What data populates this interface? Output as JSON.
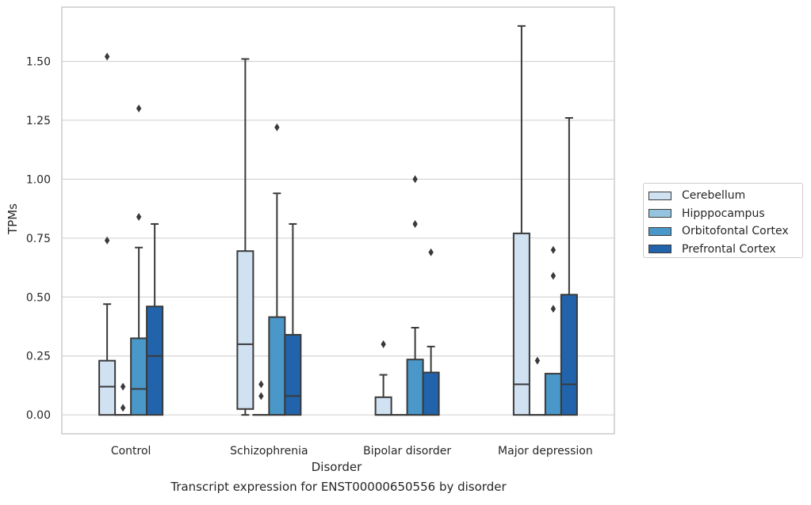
{
  "chart_data": {
    "type": "box",
    "xlabel": "Disorder",
    "ylabel": "TPMs",
    "ylim": [
      -0.08,
      1.73
    ],
    "yticks": [
      0.0,
      0.25,
      0.5,
      0.75,
      1.0,
      1.25,
      1.5
    ],
    "ytick_labels": [
      "0.00",
      "0.25",
      "0.50",
      "0.75",
      "1.00",
      "1.25",
      "1.50"
    ],
    "grid": "horizontal",
    "legend_position": "right",
    "categories": [
      "Control",
      "Schizophrenia",
      "Bipolar disorder",
      "Major depression"
    ],
    "series": [
      {
        "name": "Cerebellum",
        "color": "#d0e1f2",
        "boxes": [
          {
            "whislo": 0.0,
            "q1": 0.0,
            "med": 0.12,
            "q3": 0.23,
            "whishi": 0.47,
            "fliers": [
              0.74,
              1.52
            ]
          },
          {
            "whislo": 0.0,
            "q1": 0.025,
            "med": 0.3,
            "q3": 0.695,
            "whishi": 1.51,
            "fliers": []
          },
          {
            "whislo": 0.0,
            "q1": 0.0,
            "med": 0.0,
            "q3": 0.075,
            "whishi": 0.17,
            "fliers": [
              0.3
            ]
          },
          {
            "whislo": 0.0,
            "q1": 0.0,
            "med": 0.13,
            "q3": 0.77,
            "whishi": 1.65,
            "fliers": []
          }
        ]
      },
      {
        "name": "Hipppocampus",
        "color": "#94c4df",
        "boxes": [
          {
            "whislo": 0.0,
            "q1": 0.0,
            "med": 0.0,
            "q3": 0.0,
            "whishi": 0.0,
            "fliers": [
              0.03,
              0.12
            ]
          },
          {
            "whislo": 0.0,
            "q1": 0.0,
            "med": 0.0,
            "q3": 0.0,
            "whishi": 0.0,
            "fliers": [
              0.08,
              0.13
            ]
          },
          {
            "whislo": 0.0,
            "q1": 0.0,
            "med": 0.0,
            "q3": 0.0,
            "whishi": 0.0,
            "fliers": []
          },
          {
            "whislo": 0.0,
            "q1": 0.0,
            "med": 0.0,
            "q3": 0.0,
            "whishi": 0.0,
            "fliers": [
              0.23
            ]
          }
        ]
      },
      {
        "name": "Orbitofontal Cortex",
        "color": "#4a98c9",
        "boxes": [
          {
            "whislo": 0.0,
            "q1": 0.0,
            "med": 0.11,
            "q3": 0.325,
            "whishi": 0.71,
            "fliers": [
              0.84,
              1.3
            ]
          },
          {
            "whislo": 0.0,
            "q1": 0.0,
            "med": 0.0,
            "q3": 0.415,
            "whishi": 0.94,
            "fliers": [
              1.22
            ]
          },
          {
            "whislo": 0.0,
            "q1": 0.0,
            "med": 0.0,
            "q3": 0.235,
            "whishi": 0.37,
            "fliers": [
              0.81,
              1.0
            ]
          },
          {
            "whislo": 0.0,
            "q1": 0.0,
            "med": 0.0,
            "q3": 0.175,
            "whishi": 0.175,
            "fliers": [
              0.45,
              0.59,
              0.7
            ]
          }
        ]
      },
      {
        "name": "Prefrontal Cortex",
        "color": "#2164ab",
        "boxes": [
          {
            "whislo": 0.0,
            "q1": 0.0,
            "med": 0.25,
            "q3": 0.46,
            "whishi": 0.81,
            "fliers": []
          },
          {
            "whislo": 0.0,
            "q1": 0.0,
            "med": 0.08,
            "q3": 0.34,
            "whishi": 0.81,
            "fliers": []
          },
          {
            "whislo": 0.0,
            "q1": 0.0,
            "med": 0.0,
            "q3": 0.18,
            "whishi": 0.29,
            "fliers": [
              0.69
            ]
          },
          {
            "whislo": 0.0,
            "q1": 0.0,
            "med": 0.13,
            "q3": 0.51,
            "whishi": 1.26,
            "fliers": []
          }
        ]
      }
    ]
  },
  "caption": "Transcript expression for ENST00000650556 by disorder"
}
